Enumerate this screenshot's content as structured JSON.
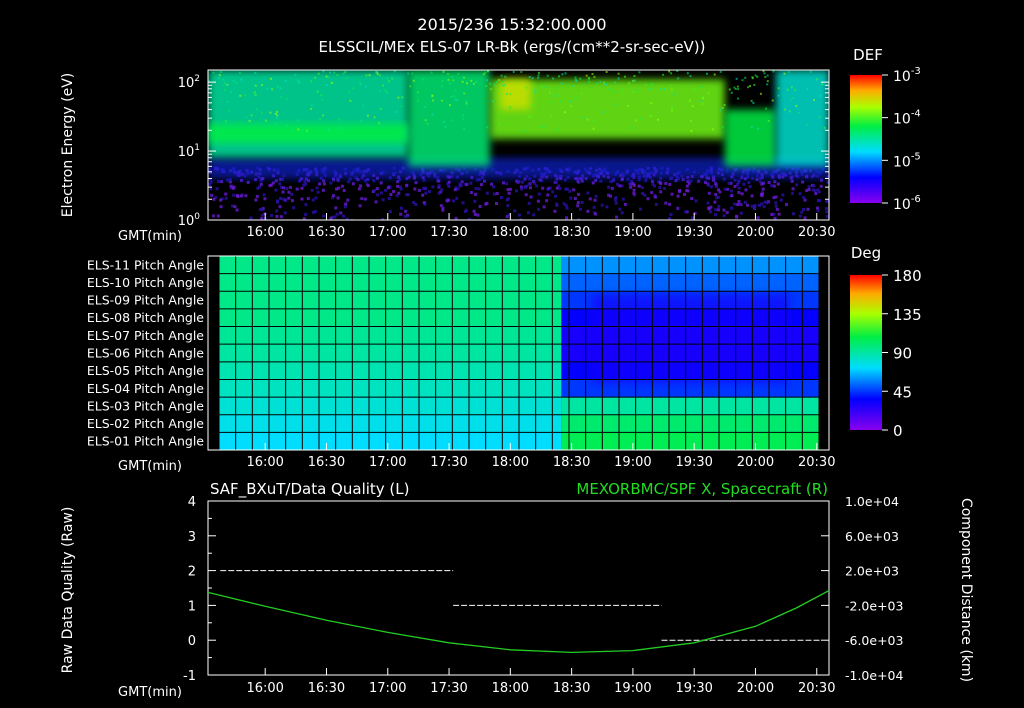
{
  "header": {
    "timestamp": "2015/236 15:32:00.000",
    "title": "ELSSCIL/MEx ELS-07 LR-Bk  (ergs/(cm**2-sr-sec-eV))"
  },
  "time_axis": {
    "label": "GMT(min)",
    "ticks": [
      "16:00",
      "16:30",
      "17:00",
      "17:30",
      "18:00",
      "18:30",
      "19:00",
      "19:30",
      "20:00",
      "20:30"
    ]
  },
  "colors": {
    "background": "#000000",
    "foreground": "#ffffff",
    "component_line": "#22cc22",
    "right_title": "#22dd22"
  },
  "chart_data": [
    {
      "type": "heatmap",
      "name": "energy-spectrogram",
      "ylabel": "Electron Energy (eV)",
      "yscale": "log",
      "ylim": [
        1,
        150
      ],
      "y_tick_labels": [
        {
          "base": "10",
          "exp": "0",
          "value": 1
        },
        {
          "base": "10",
          "exp": "1",
          "value": 10
        },
        {
          "base": "10",
          "exp": "2",
          "value": 100
        }
      ],
      "xlim_minutes_gmt": [
        "15:32",
        "20:36"
      ],
      "colorbar": {
        "title": "DEF",
        "scale": "log",
        "range": [
          1e-06,
          0.001
        ],
        "tick_labels": [
          {
            "base": "10",
            "exp": "-3"
          },
          {
            "base": "10",
            "exp": "-4"
          },
          {
            "base": "10",
            "exp": "-5"
          },
          {
            "base": "10",
            "exp": "-6"
          }
        ]
      },
      "regions": [
        {
          "x": [
            "15:32",
            "17:10"
          ],
          "energy_eV": [
            8,
            150
          ],
          "level": 0.5
        },
        {
          "x": [
            "15:32",
            "17:10"
          ],
          "energy_eV": [
            13,
            25
          ],
          "level": 0.6
        },
        {
          "x": [
            "17:10",
            "17:50"
          ],
          "energy_eV": [
            6,
            150
          ],
          "level": 0.55
        },
        {
          "x": [
            "17:50",
            "19:45"
          ],
          "energy_eV": [
            15,
            110
          ],
          "level": 0.7
        },
        {
          "x": [
            "17:55",
            "18:10"
          ],
          "energy_eV": [
            40,
            110
          ],
          "level": 0.8
        },
        {
          "x": [
            "19:45",
            "20:10"
          ],
          "energy_eV": [
            6,
            40
          ],
          "level": 0.6
        },
        {
          "x": [
            "20:10",
            "20:36"
          ],
          "energy_eV": [
            6,
            150
          ],
          "level": 0.45
        }
      ]
    },
    {
      "type": "heatmap",
      "name": "pitch-angle-grid",
      "row_labels": [
        "ELS-11 Pitch Angle",
        "ELS-10 Pitch Angle",
        "ELS-09 Pitch Angle",
        "ELS-08 Pitch Angle",
        "ELS-07 Pitch Angle",
        "ELS-06 Pitch Angle",
        "ELS-05 Pitch Angle",
        "ELS-04 Pitch Angle",
        "ELS-03 Pitch Angle",
        "ELS-02 Pitch Angle",
        "ELS-01 Pitch Angle"
      ],
      "xlim_minutes_gmt": [
        "15:32",
        "20:36"
      ],
      "transition_time": "18:25",
      "colorbar": {
        "title": "Deg",
        "range": [
          0,
          180
        ],
        "tick_labels": [
          "180",
          "135",
          "90",
          "45",
          "0"
        ]
      },
      "values_before_transition_deg": [
        95,
        95,
        95,
        95,
        92,
        90,
        87,
        84,
        80,
        76,
        72
      ],
      "values_after_transition_deg": [
        60,
        52,
        45,
        35,
        30,
        30,
        35,
        45,
        90,
        100,
        105
      ]
    },
    {
      "type": "line",
      "name": "data-quality-and-component",
      "left_title": "SAF_BXuT/Data Quality (L)",
      "right_title": "MEXORBMC/SPF X, Spacecraft (R)",
      "ylabel_left": "Raw Data Quality (Raw)",
      "ylabel_right": "Component Distance (km)",
      "ylim_left": [
        -1,
        4
      ],
      "y_tick_labels_left": [
        "4",
        "3",
        "2",
        "1",
        "0",
        "-1"
      ],
      "ylim_right": [
        -10000,
        10000
      ],
      "y_tick_labels_right": [
        "1.0e+04",
        "6.0e+03",
        "2.0e+03",
        "-2.0e+03",
        "-6.0e+03",
        "-1.0e+04"
      ],
      "series": [
        {
          "axis": "left",
          "style": "step",
          "segments": [
            {
              "x": [
                "15:38",
                "17:32"
              ],
              "y": 2
            },
            {
              "x": [
                "17:32",
                "19:14"
              ],
              "y": 1
            },
            {
              "x": [
                "19:14",
                "20:32"
              ],
              "y": 0
            }
          ]
        },
        {
          "axis": "right",
          "x": [
            "15:32",
            "16:00",
            "16:30",
            "17:00",
            "17:30",
            "18:00",
            "18:30",
            "19:00",
            "19:30",
            "20:00",
            "20:20",
            "20:36"
          ],
          "y": [
            -500,
            -2100,
            -3700,
            -5100,
            -6300,
            -7100,
            -7400,
            -7200,
            -6300,
            -4400,
            -2300,
            -300
          ]
        }
      ]
    }
  ]
}
